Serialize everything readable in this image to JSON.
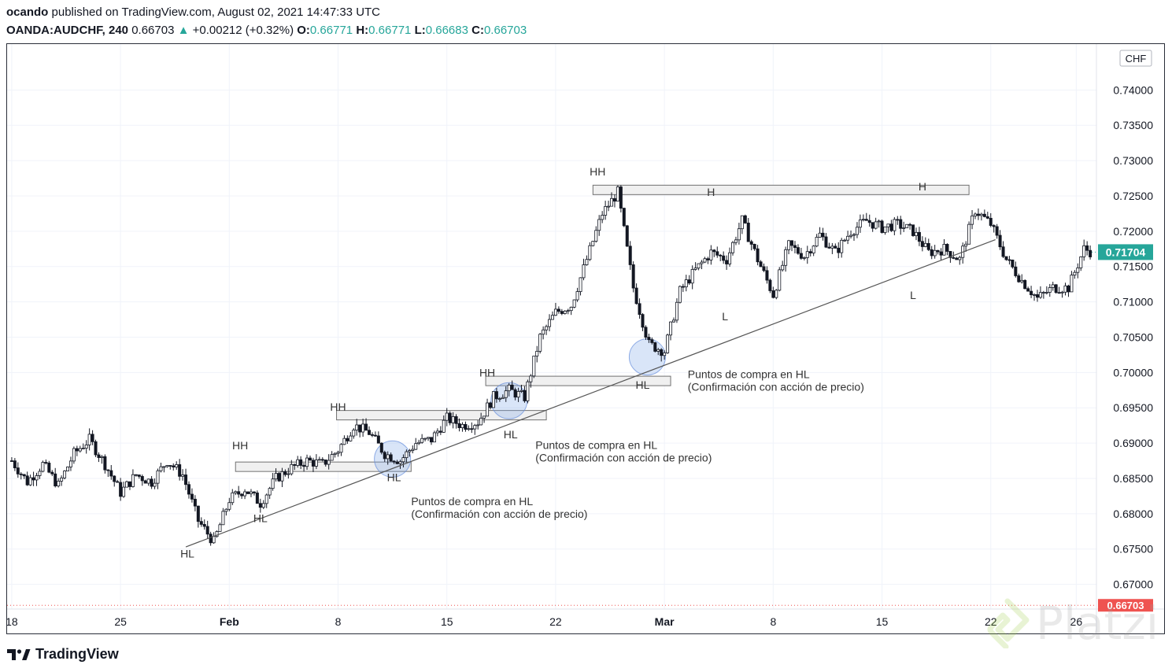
{
  "header": {
    "author": "ocando",
    "published_text": "published on TradingView.com, August 02, 2021 14:47:33 UTC",
    "symbol": "OANDA:AUDCHF, 240",
    "last": "0.66703",
    "change": "+0.00212 (+0.32%)",
    "o_label": "O:",
    "o_value": "0.66771",
    "h_label": "H:",
    "h_value": "0.66771",
    "l_label": "L:",
    "l_value": "0.66683",
    "c_label": "C:",
    "c_value": "0.66703"
  },
  "footer": {
    "brand": "TradingView",
    "watermark": "Platzi"
  },
  "colors": {
    "up": "#26a69a",
    "down": "#ef5350",
    "candle": "#131722",
    "grid": "#f0f3fa",
    "trend": "#555555"
  },
  "chart_data": {
    "type": "candlestick",
    "currency": "CHF",
    "y_ticks": [
      "0.74000",
      "0.73500",
      "0.73000",
      "0.72500",
      "0.72000",
      "0.71500",
      "0.71000",
      "0.70500",
      "0.70000",
      "0.69500",
      "0.69000",
      "0.68500",
      "0.68000",
      "0.67500",
      "0.67000"
    ],
    "ylim": [
      0.6665,
      0.7465
    ],
    "x_ticks": [
      {
        "label": "18",
        "day": 0,
        "bold": false
      },
      {
        "label": "25",
        "day": 7,
        "bold": false
      },
      {
        "label": "Feb",
        "day": 14,
        "bold": true
      },
      {
        "label": "8",
        "day": 21,
        "bold": false
      },
      {
        "label": "15",
        "day": 28,
        "bold": false
      },
      {
        "label": "22",
        "day": 35,
        "bold": false
      },
      {
        "label": "Mar",
        "day": 42,
        "bold": true
      },
      {
        "label": "8",
        "day": 49,
        "bold": false
      },
      {
        "label": "15",
        "day": 56,
        "bold": false
      },
      {
        "label": "22",
        "day": 63,
        "bold": false
      },
      {
        "label": "26",
        "day": 68.5,
        "bold": false
      }
    ],
    "xlim": [
      -0.3,
      69.8
    ],
    "last_price_label": "0.71704",
    "last_price": 0.71704,
    "current_price_label": "0.66703",
    "current_price": 0.66703,
    "path": [
      [
        0,
        0.6875
      ],
      [
        1,
        0.6845
      ],
      [
        2,
        0.687
      ],
      [
        3,
        0.684
      ],
      [
        4,
        0.6885
      ],
      [
        5,
        0.6905
      ],
      [
        6,
        0.687
      ],
      [
        7,
        0.683
      ],
      [
        8,
        0.6855
      ],
      [
        9,
        0.6845
      ],
      [
        10,
        0.6875
      ],
      [
        11,
        0.6855
      ],
      [
        12,
        0.679
      ],
      [
        13,
        0.676
      ],
      [
        14,
        0.682
      ],
      [
        15,
        0.6835
      ],
      [
        16,
        0.6815
      ],
      [
        17,
        0.685
      ],
      [
        18,
        0.6865
      ],
      [
        19,
        0.6875
      ],
      [
        20,
        0.687
      ],
      [
        21,
        0.689
      ],
      [
        22,
        0.6925
      ],
      [
        23,
        0.6915
      ],
      [
        24,
        0.6885
      ],
      [
        25,
        0.6875
      ],
      [
        26,
        0.69
      ],
      [
        27,
        0.6905
      ],
      [
        28,
        0.6935
      ],
      [
        29,
        0.6925
      ],
      [
        30,
        0.693
      ],
      [
        31,
        0.6965
      ],
      [
        32,
        0.6975
      ],
      [
        33,
        0.6965
      ],
      [
        34,
        0.705
      ],
      [
        35,
        0.7085
      ],
      [
        36,
        0.7095
      ],
      [
        37,
        0.716
      ],
      [
        38,
        0.7225
      ],
      [
        39,
        0.7255
      ],
      [
        40,
        0.712
      ],
      [
        41,
        0.704
      ],
      [
        42,
        0.703
      ],
      [
        43,
        0.7115
      ],
      [
        44,
        0.7145
      ],
      [
        45,
        0.717
      ],
      [
        46,
        0.716
      ],
      [
        47,
        0.7215
      ],
      [
        48,
        0.716
      ],
      [
        49,
        0.711
      ],
      [
        50,
        0.718
      ],
      [
        51,
        0.7165
      ],
      [
        52,
        0.7195
      ],
      [
        53,
        0.717
      ],
      [
        54,
        0.72
      ],
      [
        55,
        0.7215
      ],
      [
        56,
        0.7205
      ],
      [
        57,
        0.721
      ],
      [
        58,
        0.72
      ],
      [
        59,
        0.717
      ],
      [
        60,
        0.7175
      ],
      [
        61,
        0.716
      ],
      [
        62,
        0.723
      ],
      [
        63,
        0.721
      ],
      [
        64,
        0.716
      ],
      [
        65,
        0.713
      ],
      [
        66,
        0.7105
      ],
      [
        67,
        0.712
      ],
      [
        68,
        0.712
      ],
      [
        69,
        0.7175
      ],
      [
        69.5,
        0.71704
      ]
    ],
    "trendline": [
      [
        11.2,
        0.6753
      ],
      [
        63.3,
        0.7188
      ]
    ],
    "zones": [
      {
        "x0": 14.4,
        "x1": 25.7,
        "y": 0.68665
      },
      {
        "x0": 20.9,
        "x1": 34.4,
        "y": 0.69395
      },
      {
        "x0": 30.5,
        "x1": 42.4,
        "y": 0.6988
      },
      {
        "x0": 37.4,
        "x1": 61.6,
        "y": 0.72585
      }
    ],
    "circles": [
      {
        "x": 24.5,
        "y": 0.68775
      },
      {
        "x": 32.0,
        "y": 0.696
      },
      {
        "x": 40.9,
        "y": 0.7022
      }
    ],
    "labels": [
      {
        "text": "HH",
        "x": 14.7,
        "y": 0.6891
      },
      {
        "text": "HL",
        "x": 11.3,
        "y": 0.6738
      },
      {
        "text": "HL",
        "x": 16.0,
        "y": 0.6788
      },
      {
        "text": "HH",
        "x": 21.0,
        "y": 0.6946
      },
      {
        "text": "HL",
        "x": 24.6,
        "y": 0.6846
      },
      {
        "text": "HH",
        "x": 30.6,
        "y": 0.6994
      },
      {
        "text": "HL",
        "x": 32.1,
        "y": 0.6907
      },
      {
        "text": "HH",
        "x": 37.7,
        "y": 0.7279
      },
      {
        "text": "HL",
        "x": 40.6,
        "y": 0.6977
      },
      {
        "text": "H",
        "x": 45.0,
        "y": 0.725
      },
      {
        "text": "L",
        "x": 45.9,
        "y": 0.7074
      },
      {
        "text": "H",
        "x": 58.6,
        "y": 0.7258
      },
      {
        "text": "L",
        "x": 58.0,
        "y": 0.7104
      }
    ],
    "notes": [
      {
        "line1": "Puntos de compra en HL",
        "line2": "(Confirmación con acción de precio)",
        "x": 25.7,
        "y": 0.6812
      },
      {
        "line1": "Puntos de compra en HL",
        "line2": "(Confirmación con acción de precio)",
        "x": 33.7,
        "y": 0.6892
      },
      {
        "line1": "Puntos de compra en HL",
        "line2": "(Confirmación con acción de precio)",
        "x": 43.5,
        "y": 0.6992
      }
    ]
  }
}
